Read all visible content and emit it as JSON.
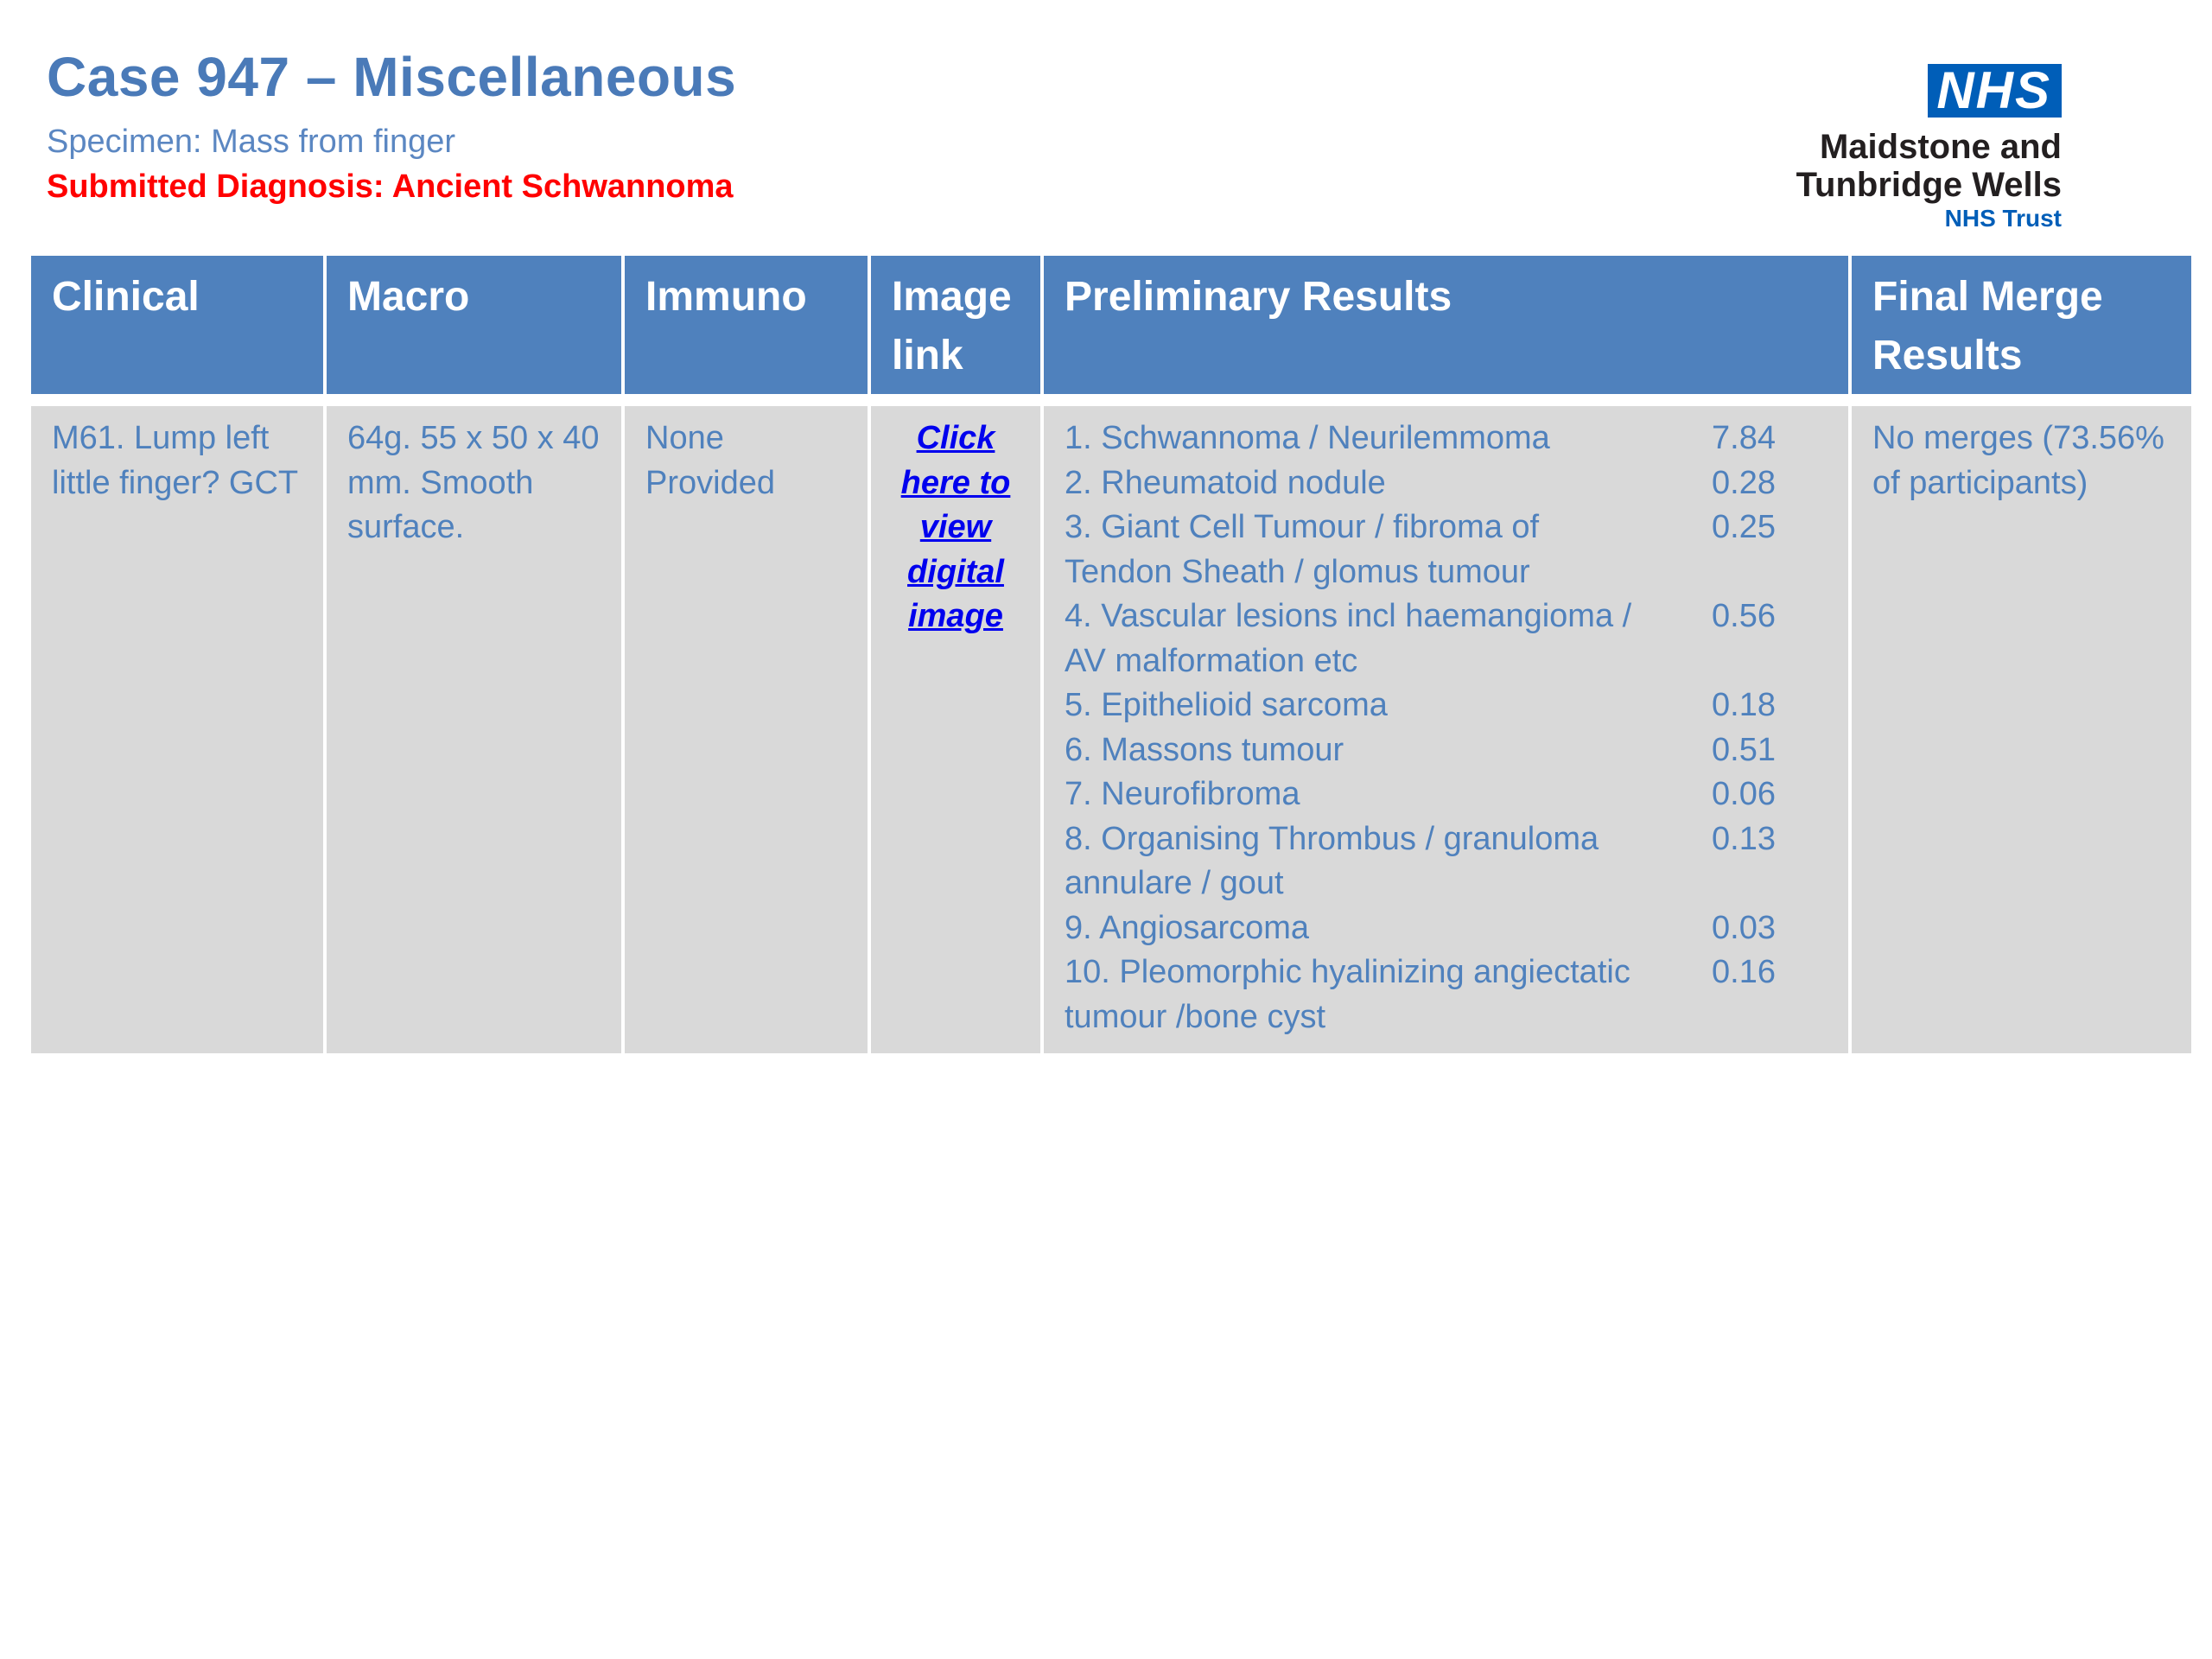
{
  "header": {
    "title": "Case 947 – Miscellaneous",
    "specimen": "Specimen: Mass from finger",
    "submitted_diagnosis": "Submitted Diagnosis: Ancient Schwannoma"
  },
  "logo": {
    "mark": "NHS",
    "org_line1": "Maidstone and",
    "org_line2": "Tunbridge Wells",
    "trust": "NHS Trust"
  },
  "table": {
    "headers": {
      "clinical": "Clinical",
      "macro": "Macro",
      "immuno": "Immuno",
      "image_link": "Image link",
      "preliminary": "Preliminary Results",
      "final": "Final Merge Results"
    },
    "row": {
      "clinical": "M61. Lump left little finger? GCT",
      "macro": "64g. 55 x 50 x 40 mm. Smooth surface.",
      "immuno": "None Provided",
      "image_link": "Click here to view digital image",
      "preliminary": [
        {
          "label": "1. Schwannoma / Neurilemmoma",
          "score": "7.84"
        },
        {
          "label": "2. Rheumatoid nodule",
          "score": "0.28"
        },
        {
          "label": "3. Giant Cell Tumour / fibroma of Tendon Sheath / glomus tumour",
          "score": "0.25"
        },
        {
          "label": "4. Vascular lesions incl haemangioma / AV malformation etc",
          "score": "0.56"
        },
        {
          "label": "5. Epithelioid sarcoma",
          "score": "0.18"
        },
        {
          "label": "6. Massons tumour",
          "score": "0.51"
        },
        {
          "label": "7. Neurofibroma",
          "score": "0.06"
        },
        {
          "label": "8. Organising Thrombus / granuloma annulare / gout",
          "score": "0.13"
        },
        {
          "label": "9. Angiosarcoma",
          "score": "0.03"
        },
        {
          "label": "10. Pleomorphic hyalinizing angiectatic tumour /bone cyst",
          "score": "0.16"
        }
      ],
      "final": "No merges (73.56% of participants)"
    },
    "colors": {
      "header_bg": "#4f81bd",
      "cell_bg": "#d9d9d9",
      "cell_text": "#4f81bd",
      "final_text": "#ff0000",
      "link_text": "#0000ee"
    }
  }
}
